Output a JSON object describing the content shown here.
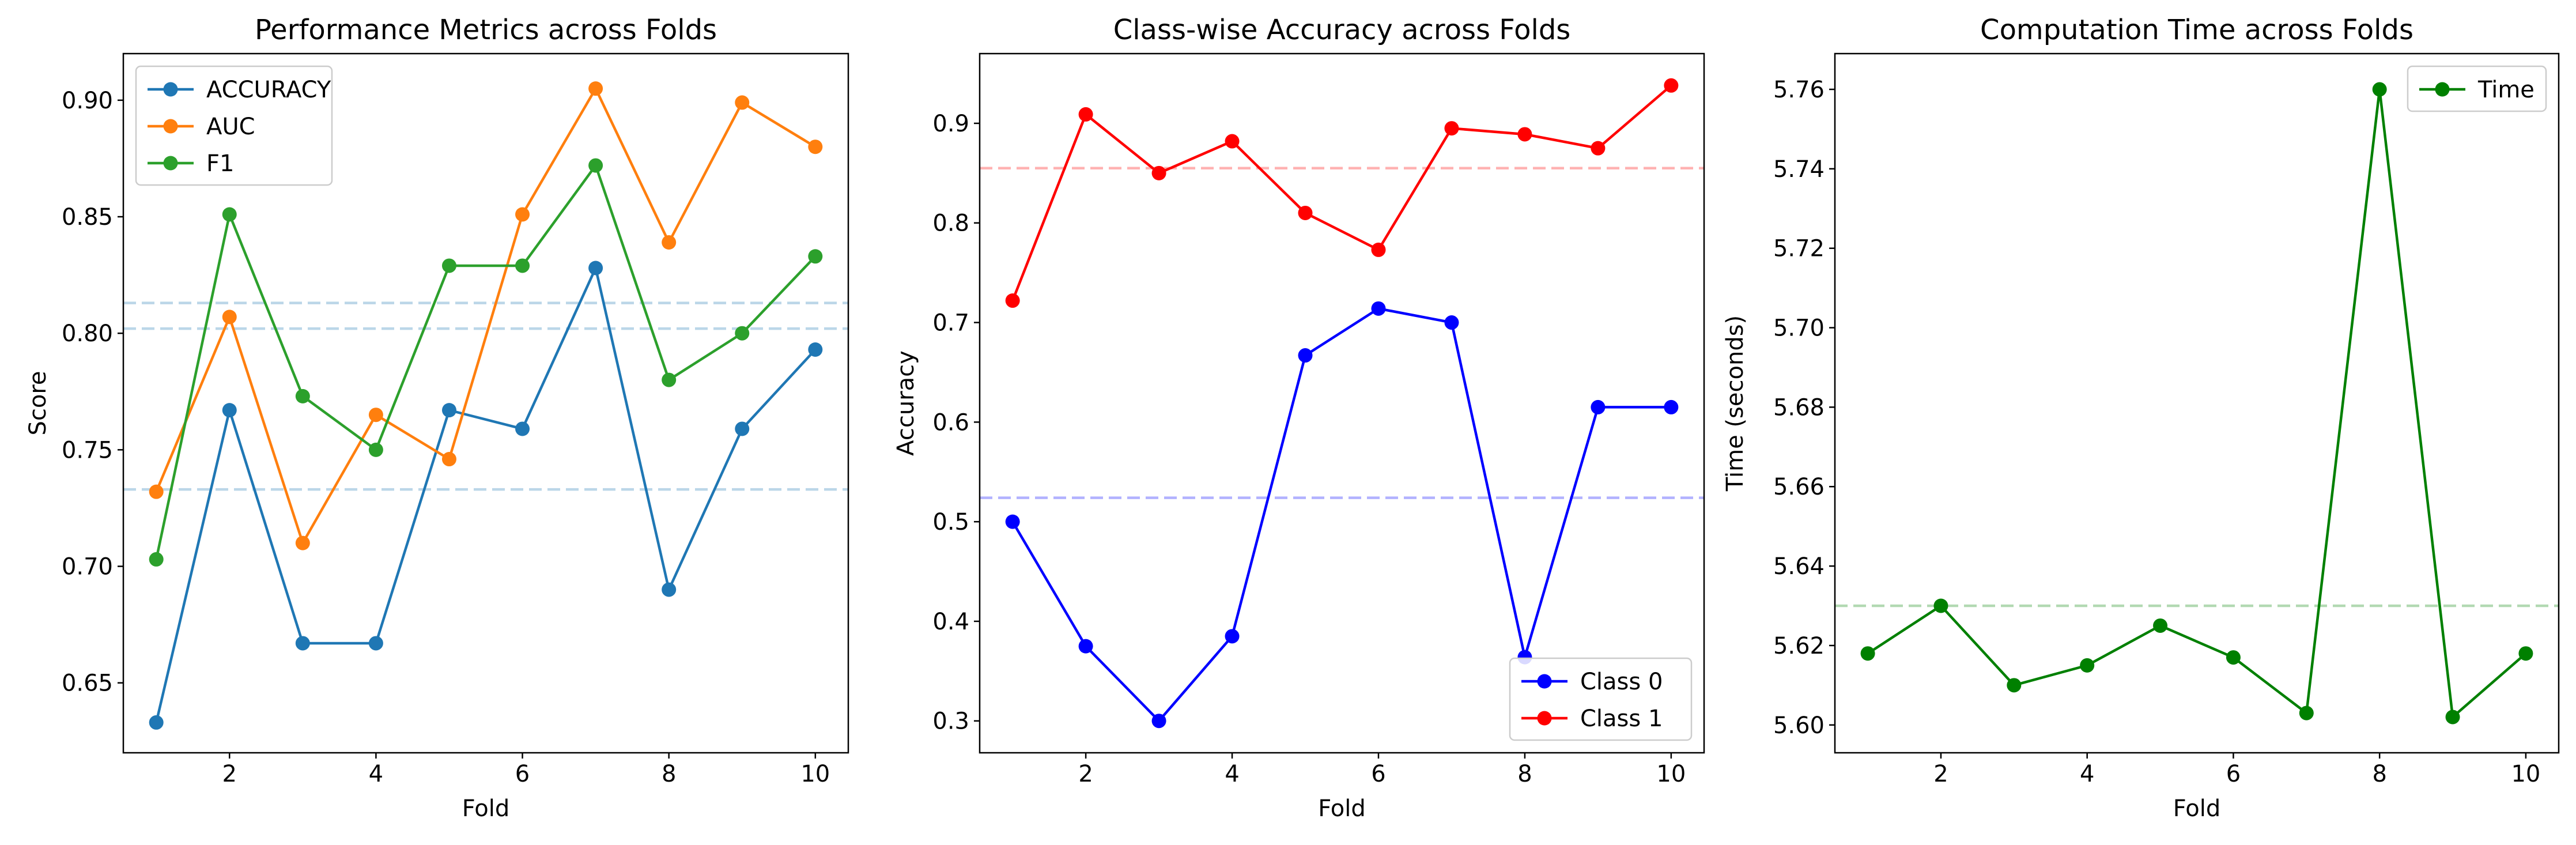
{
  "chart_data": [
    {
      "type": "line",
      "title": "Performance Metrics across Folds",
      "xlabel": "Fold",
      "ylabel": "Score",
      "xlim": [
        0.55,
        10.45
      ],
      "ylim": [
        0.62,
        0.92
      ],
      "xticks": [
        2,
        4,
        6,
        8,
        10
      ],
      "yticks": [
        0.65,
        0.7,
        0.75,
        0.8,
        0.85,
        0.9
      ],
      "ytick_format": 2,
      "grid": false,
      "legend_position": "top-left",
      "x": [
        1,
        2,
        3,
        4,
        5,
        6,
        7,
        8,
        9,
        10
      ],
      "series": [
        {
          "name": "ACCURACY",
          "color": "#1f77b4",
          "values": [
            0.633,
            0.767,
            0.667,
            0.667,
            0.767,
            0.759,
            0.828,
            0.69,
            0.759,
            0.793
          ]
        },
        {
          "name": "AUC",
          "color": "#ff7f0e",
          "values": [
            0.732,
            0.807,
            0.71,
            0.765,
            0.746,
            0.851,
            0.905,
            0.839,
            0.899,
            0.88
          ]
        },
        {
          "name": "F1",
          "color": "#2ca02c",
          "values": [
            0.703,
            0.851,
            0.773,
            0.75,
            0.829,
            0.829,
            0.872,
            0.78,
            0.8,
            0.833
          ]
        }
      ],
      "reference_lines": [
        {
          "y": 0.733,
          "color": "#1f77b4"
        },
        {
          "y": 0.802,
          "color": "#1f77b4"
        },
        {
          "y": 0.813,
          "color": "#1f77b4"
        }
      ]
    },
    {
      "type": "line",
      "title": "Class-wise Accuracy across Folds",
      "xlabel": "Fold",
      "ylabel": "Accuracy",
      "xlim": [
        0.55,
        10.45
      ],
      "ylim": [
        0.268,
        0.97
      ],
      "xticks": [
        2,
        4,
        6,
        8,
        10
      ],
      "yticks": [
        0.3,
        0.4,
        0.5,
        0.6,
        0.7,
        0.8,
        0.9
      ],
      "ytick_format": 1,
      "grid": false,
      "legend_position": "bottom-right",
      "x": [
        1,
        2,
        3,
        4,
        5,
        6,
        7,
        8,
        9,
        10
      ],
      "series": [
        {
          "name": "Class 0",
          "color": "#0000ff",
          "values": [
            0.5,
            0.375,
            0.3,
            0.385,
            0.667,
            0.714,
            0.7,
            0.364,
            0.615,
            0.615
          ]
        },
        {
          "name": "Class 1",
          "color": "#ff0000",
          "values": [
            0.722,
            0.909,
            0.85,
            0.882,
            0.81,
            0.773,
            0.895,
            0.889,
            0.875,
            0.938
          ]
        }
      ],
      "reference_lines": [
        {
          "y": 0.524,
          "color": "#0000ff"
        },
        {
          "y": 0.855,
          "color": "#ff0000"
        }
      ]
    },
    {
      "type": "line",
      "title": "Computation Time across Folds",
      "xlabel": "Fold",
      "ylabel": "Time (seconds)",
      "xlim": [
        0.55,
        10.45
      ],
      "ylim": [
        5.593,
        5.769
      ],
      "xticks": [
        2,
        4,
        6,
        8,
        10
      ],
      "yticks": [
        5.6,
        5.62,
        5.64,
        5.66,
        5.68,
        5.7,
        5.72,
        5.74,
        5.76
      ],
      "ytick_format": 2,
      "grid": false,
      "legend_position": "top-right",
      "x": [
        1,
        2,
        3,
        4,
        5,
        6,
        7,
        8,
        9,
        10
      ],
      "series": [
        {
          "name": "Time",
          "color": "#008000",
          "values": [
            5.618,
            5.63,
            5.61,
            5.615,
            5.625,
            5.617,
            5.603,
            5.76,
            5.602,
            5.618
          ]
        }
      ],
      "reference_lines": [
        {
          "y": 5.63,
          "color": "#008000"
        }
      ]
    }
  ]
}
